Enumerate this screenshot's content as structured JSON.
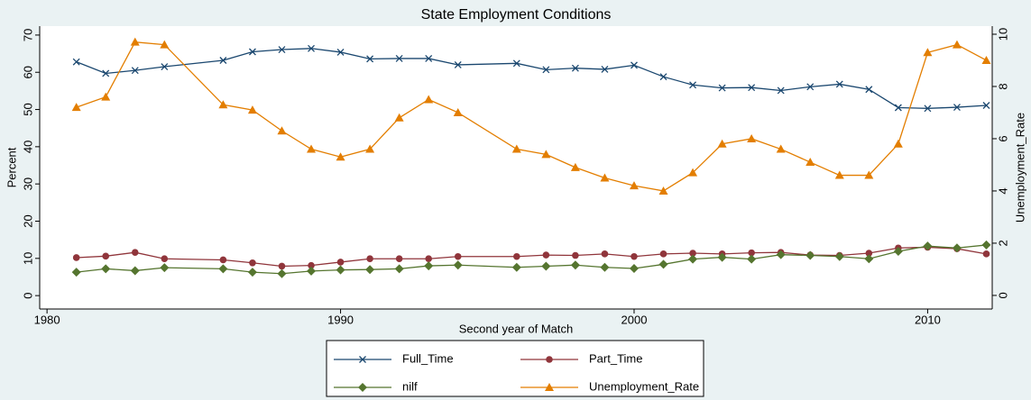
{
  "chart_data": {
    "type": "line",
    "title": "State Employment Conditions",
    "x_label": "Second year of Match",
    "y_label": "Percent",
    "y2_label": "Unemployment_Rate",
    "x": [
      1981,
      1982,
      1983,
      1984,
      1986,
      1987,
      1988,
      1989,
      1990,
      1991,
      1992,
      1993,
      1994,
      1996,
      1997,
      1998,
      1999,
      2000,
      2001,
      2002,
      2003,
      2004,
      2005,
      2006,
      2007,
      2008,
      2009,
      2010,
      2011,
      2012
    ],
    "xlim": [
      1979.75,
      2012.2
    ],
    "xticks": [
      1980,
      1990,
      2000,
      2010
    ],
    "ylim": [
      -3.6,
      72.4
    ],
    "yticks": [
      0,
      10,
      20,
      30,
      40,
      50,
      60,
      70
    ],
    "y2lim": [
      -0.52,
      10.31
    ],
    "y2ticks": [
      0,
      2,
      4,
      6,
      8,
      10
    ],
    "grid": false,
    "legend": "bottom",
    "series": [
      {
        "name": "Full_Time",
        "color": "#1a476f",
        "marker": "x",
        "values": [
          62.8,
          59.7,
          60.5,
          61.5,
          63.2,
          65.5,
          66.1,
          66.4,
          65.4,
          63.6,
          63.7,
          63.7,
          62.0,
          62.4,
          60.7,
          61.1,
          60.8,
          61.9,
          58.8,
          56.6,
          55.8,
          55.9,
          55.1,
          56.1,
          56.8,
          55.4,
          50.5,
          50.3,
          50.6,
          51.1
        ]
      },
      {
        "name": "Part_Time",
        "color": "#90353b",
        "marker": "circle",
        "values": [
          10.2,
          10.6,
          11.6,
          9.9,
          9.6,
          8.8,
          7.9,
          8.1,
          9.0,
          9.9,
          9.9,
          9.9,
          10.5,
          10.5,
          10.9,
          10.8,
          11.2,
          10.5,
          11.2,
          11.4,
          11.2,
          11.5,
          11.6,
          10.9,
          10.8,
          11.4,
          12.8,
          13.0,
          12.6,
          11.2
        ]
      },
      {
        "name": "nilf",
        "color": "#55752f",
        "marker": "diamond",
        "values": [
          6.3,
          7.2,
          6.7,
          7.5,
          7.2,
          6.3,
          5.9,
          6.6,
          6.9,
          7.0,
          7.2,
          8.0,
          8.2,
          7.6,
          7.9,
          8.2,
          7.6,
          7.3,
          8.4,
          9.8,
          10.3,
          9.8,
          11.0,
          10.8,
          10.5,
          9.9,
          11.9,
          13.3,
          12.8,
          13.6
        ]
      },
      {
        "name": "Unemployment_Rate",
        "color": "#e37e00",
        "marker": "triangle",
        "axis": "y2",
        "values": [
          7.2,
          7.6,
          9.7,
          9.6,
          7.3,
          7.1,
          6.3,
          5.6,
          5.3,
          5.6,
          6.8,
          7.5,
          7.0,
          5.6,
          5.4,
          4.9,
          4.5,
          4.2,
          4.0,
          4.7,
          5.8,
          6.0,
          5.6,
          5.1,
          4.6,
          4.6,
          5.8,
          9.3,
          9.6,
          9.0
        ]
      }
    ]
  }
}
